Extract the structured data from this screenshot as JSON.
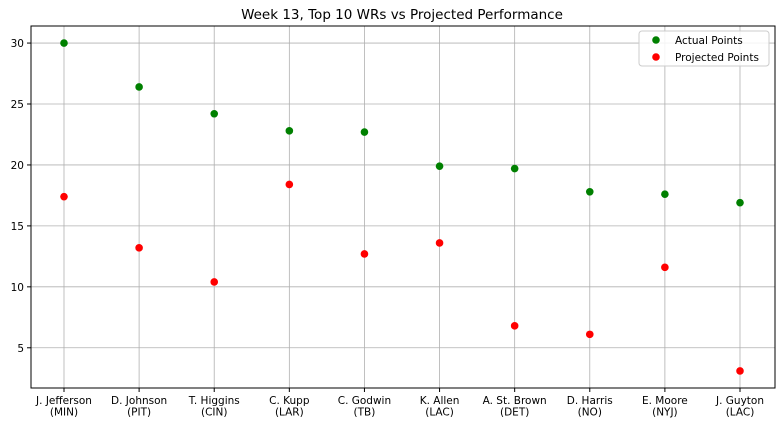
{
  "chart_data": {
    "type": "scatter",
    "title": "Week 13, Top 10 WRs vs Projected Performance",
    "xlabel": "",
    "ylabel": "",
    "categories": [
      [
        "J. Jefferson",
        "(MIN)"
      ],
      [
        "D. Johnson",
        "(PIT)"
      ],
      [
        "T. Higgins",
        "(CIN)"
      ],
      [
        "C. Kupp",
        "(LAR)"
      ],
      [
        "C. Godwin",
        "(TB)"
      ],
      [
        "K. Allen",
        "(LAC)"
      ],
      [
        "A. St. Brown",
        "(DET)"
      ],
      [
        "D. Harris",
        "(NO)"
      ],
      [
        "E. Moore",
        "(NYJ)"
      ],
      [
        "J. Guyton",
        "(LAC)"
      ]
    ],
    "series": [
      {
        "name": "Actual Points",
        "color": "#008000",
        "values": [
          30.0,
          26.4,
          24.2,
          22.8,
          22.7,
          19.9,
          19.7,
          17.8,
          17.6,
          16.9
        ]
      },
      {
        "name": "Projected Points",
        "color": "#ff0000",
        "values": [
          17.4,
          13.2,
          10.4,
          18.4,
          12.7,
          13.6,
          6.8,
          6.1,
          11.6,
          3.1
        ]
      }
    ],
    "ylim": [
      1.7,
      31.4
    ],
    "yticks": [
      5,
      10,
      15,
      20,
      25,
      30
    ],
    "grid": true,
    "legend": "top-right"
  }
}
